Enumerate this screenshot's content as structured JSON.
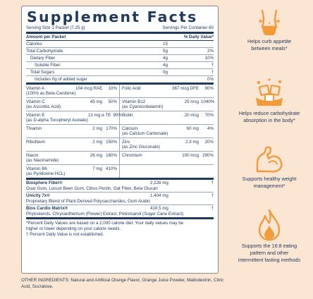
{
  "title": "Supplement Facts",
  "serving_size": "Serving Size 1 Packet (7.25 g)",
  "servings_per_container": "Servings Per Container 60",
  "header": {
    "amount": "Amount per Packet",
    "dv": "% Daily Value*"
  },
  "macros": [
    {
      "name": "Calories",
      "amount": "15",
      "dv": "",
      "indent": 0
    },
    {
      "name": "Total Carbohydrate",
      "amount": "5g",
      "dv": "2%",
      "indent": 0
    },
    {
      "name": "Dietary Fiber",
      "amount": "4g",
      "dv": "10%",
      "indent": 1
    },
    {
      "name": "Soluble Fiber",
      "amount": "4g",
      "dv": "†",
      "indent": 2
    },
    {
      "name": "Total Sugars",
      "amount": "0g",
      "dv": "†",
      "indent": 1
    },
    {
      "name": "Includes 0g of added sugar",
      "amount": "",
      "dv": "0%",
      "indent": 2
    }
  ],
  "vitamins": [
    {
      "left": {
        "name": "Vitamin A",
        "sub": "(100% as Beta-Carotene)",
        "amount": "104 mcg RAE",
        "dv": "10%"
      },
      "right": {
        "name": "Folic Acid",
        "sub": "",
        "amount": "367 mcg DFE",
        "dv": "90%"
      }
    },
    {
      "left": {
        "name": "Vitamin C",
        "sub": "(as Ascorbic Acid)",
        "amount": "45 mg",
        "dv": "50%"
      },
      "right": {
        "name": "Vitamin B12",
        "sub": "(as Cyanocobalamin)",
        "amount": "25 mcg",
        "dv": "1040%"
      }
    },
    {
      "left": {
        "name": "Vitamin E",
        "sub": "(as D-alpha Tocopheryl Acetate)",
        "amount": "13 mg α-TE",
        "dv": "90%"
      },
      "right": {
        "name": "Biotin",
        "sub": "",
        "amount": "20 mcg",
        "dv": "70%"
      }
    },
    {
      "left": {
        "name": "Thiamin",
        "sub": "",
        "amount": "2 mg",
        "dv": "170%"
      },
      "right": {
        "name": "Calcium",
        "sub": "(as Calcium Carbonate)",
        "amount": "60 mg",
        "dv": "4%"
      }
    },
    {
      "left": {
        "name": "Riboflavin",
        "sub": "",
        "amount": "2 mg",
        "dv": "150%"
      },
      "right": {
        "name": "Zinc",
        "sub": "(as Zinc Gluconate)",
        "amount": "2.3 mg",
        "dv": "20%"
      }
    },
    {
      "left": {
        "name": "Niacin",
        "sub": "(as Niacinamide)",
        "amount": "26 mg",
        "dv": "160%"
      },
      "right": {
        "name": "Chromium",
        "sub": "",
        "amount": "100 mcg",
        "dv": "290%"
      }
    },
    {
      "left": {
        "name": "Vitamin B6",
        "sub": "(as Pyridoxine HCL)",
        "amount": "7 mg",
        "dv": "410%"
      },
      "right": {
        "name": "",
        "sub": "",
        "amount": "",
        "dv": ""
      }
    }
  ],
  "blends": [
    {
      "name": "Biosphere Fiber®",
      "amount": "2,228 mg",
      "dv": "†",
      "ingredients": "Guar Gum, Locust Been Gum, Citrus Pectin, Oat Fiber, Beta Glucan"
    },
    {
      "name": "Unicity 7x®",
      "amount": "1,404 mg",
      "dv": "†",
      "ingredients": "Proprietary Blend of Plant-Derived Polysaccharides, Gum Arabic"
    },
    {
      "name": "Bios Cardio Matrix®",
      "amount": "418.5 mg",
      "dv": "†",
      "ingredients": "Phytosterols, Chrysanthemum (Flower) Extract, Policosanol (Sugar Cane Extract)"
    }
  ],
  "footnotes": [
    "*Percent Daily Values are based on a 2,000 calorie diet. Your daily values may be",
    "higher or lower depending on your calorie needs.",
    "† Percent Daily Value is not established."
  ],
  "other_ingredients": {
    "label": "OTHER INGREDIENTS:",
    "text": "Natural and Artificial Orange Flavor, Orange Juice Powder, Maltodextrin, Citric Acid, Sucralose."
  },
  "benefits": [
    {
      "icon": "waist-icon",
      "text": [
        "Helps curb appetite",
        "between meals*"
      ]
    },
    {
      "icon": "sugar-cubes-icon",
      "text": [
        "Helps reduce carbohydrate",
        "absorption in the body*"
      ]
    },
    {
      "icon": "flexed-arm-icon",
      "text": [
        "Supports healthy weight",
        "management*"
      ]
    },
    {
      "icon": "flame-icon",
      "text": [
        "Supports the 16:8 eating",
        "pattern and other",
        "intermittent fasting methods"
      ]
    }
  ],
  "colors": {
    "background": "#fbe5d3",
    "text": "#1f3a5c",
    "icon": "#f39a3b"
  }
}
